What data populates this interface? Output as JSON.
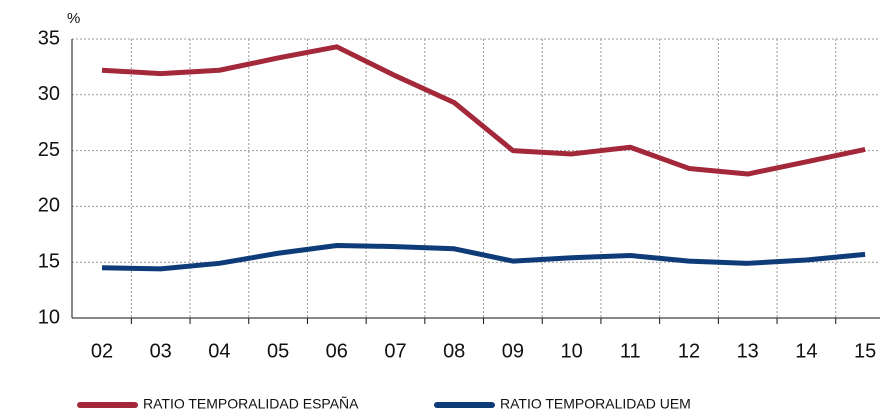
{
  "chart_data": {
    "type": "line",
    "y_unit": "%",
    "categories": [
      "02",
      "03",
      "04",
      "05",
      "06",
      "07",
      "08",
      "09",
      "10",
      "11",
      "12",
      "13",
      "14",
      "15"
    ],
    "series": [
      {
        "name": "RATIO TEMPORALIDAD ESPAÑA",
        "color": "#a3283a",
        "values": [
          32.2,
          31.9,
          32.2,
          33.3,
          34.3,
          31.7,
          29.3,
          25.0,
          24.7,
          25.3,
          23.4,
          22.9,
          24.0,
          25.1
        ]
      },
      {
        "name": "RATIO TEMPORALIDAD UEM",
        "color": "#0d3c78",
        "values": [
          14.5,
          14.4,
          14.9,
          15.8,
          16.5,
          16.4,
          16.2,
          15.1,
          15.4,
          15.6,
          15.1,
          14.9,
          15.2,
          15.7
        ]
      }
    ],
    "ylim": [
      10,
      35
    ],
    "yticks": [
      10,
      15,
      20,
      25,
      30,
      35
    ],
    "grid": true,
    "legend": "bottom"
  }
}
